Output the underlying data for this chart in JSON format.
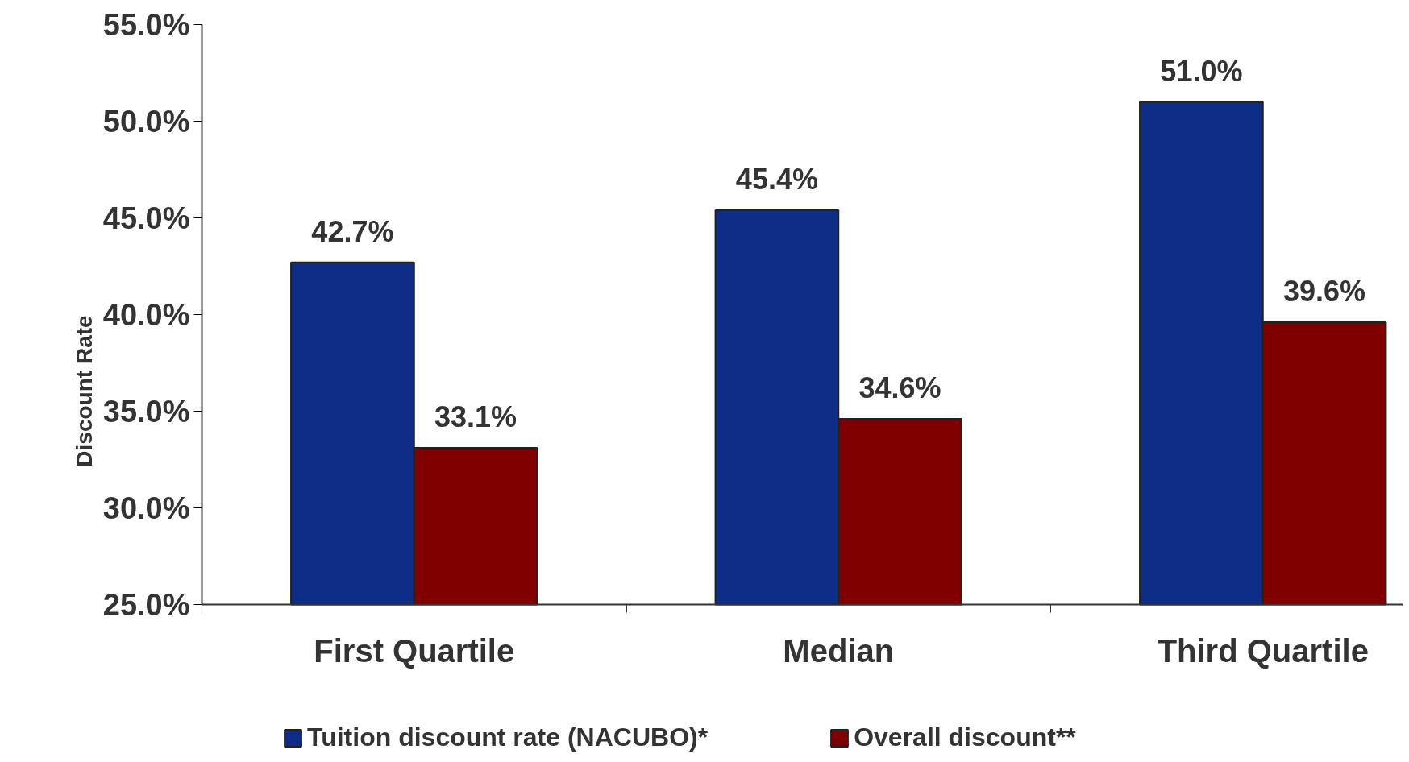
{
  "chart_data": {
    "type": "bar",
    "ylabel": "Discount Rate",
    "categories": [
      "First Quartile",
      "Median",
      "Third Quartile"
    ],
    "series": [
      {
        "name": "Tuition discount rate (NACUBO)*",
        "color": "#0e2d87",
        "values": [
          42.7,
          45.4,
          51.0
        ],
        "value_labels": [
          "42.7%",
          "45.4%",
          "51.0%"
        ]
      },
      {
        "name": "Overall discount**",
        "color": "#800000",
        "values": [
          33.1,
          34.6,
          39.6
        ],
        "value_labels": [
          "33.1%",
          "34.6%",
          "39.6%"
        ]
      }
    ],
    "ylim": [
      25,
      55
    ],
    "yticks": [
      {
        "value": 25,
        "label": "25.0%"
      },
      {
        "value": 30,
        "label": "30.0%"
      },
      {
        "value": 35,
        "label": "35.0%"
      },
      {
        "value": 40,
        "label": "40.0%"
      },
      {
        "value": 45,
        "label": "45.0%"
      },
      {
        "value": 50,
        "label": "50.0%"
      },
      {
        "value": 55,
        "label": "55.0%"
      }
    ],
    "grid": false,
    "legend": "bottom"
  }
}
